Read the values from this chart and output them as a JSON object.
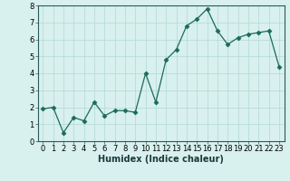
{
  "x": [
    0,
    1,
    2,
    3,
    4,
    5,
    6,
    7,
    8,
    9,
    10,
    11,
    12,
    13,
    14,
    15,
    16,
    17,
    18,
    19,
    20,
    21,
    22,
    23
  ],
  "y": [
    1.9,
    2.0,
    0.5,
    1.4,
    1.2,
    2.3,
    1.5,
    1.8,
    1.8,
    1.7,
    4.0,
    2.3,
    4.8,
    5.4,
    6.8,
    7.2,
    7.8,
    6.5,
    5.7,
    6.1,
    6.3,
    6.4,
    6.5,
    4.4
  ],
  "xlabel": "Humidex (Indice chaleur)",
  "xlim": [
    -0.5,
    23.5
  ],
  "ylim": [
    0,
    8
  ],
  "yticks": [
    0,
    1,
    2,
    3,
    4,
    5,
    6,
    7,
    8
  ],
  "xticks": [
    0,
    1,
    2,
    3,
    4,
    5,
    6,
    7,
    8,
    9,
    10,
    11,
    12,
    13,
    14,
    15,
    16,
    17,
    18,
    19,
    20,
    21,
    22,
    23
  ],
  "line_color": "#1a6b5a",
  "marker": "D",
  "marker_size": 2.5,
  "bg_color": "#d8f0ee",
  "grid_color": "#b8dcd8",
  "axis_bg": "#d8f0ee",
  "tick_fontsize": 6,
  "xlabel_fontsize": 7
}
